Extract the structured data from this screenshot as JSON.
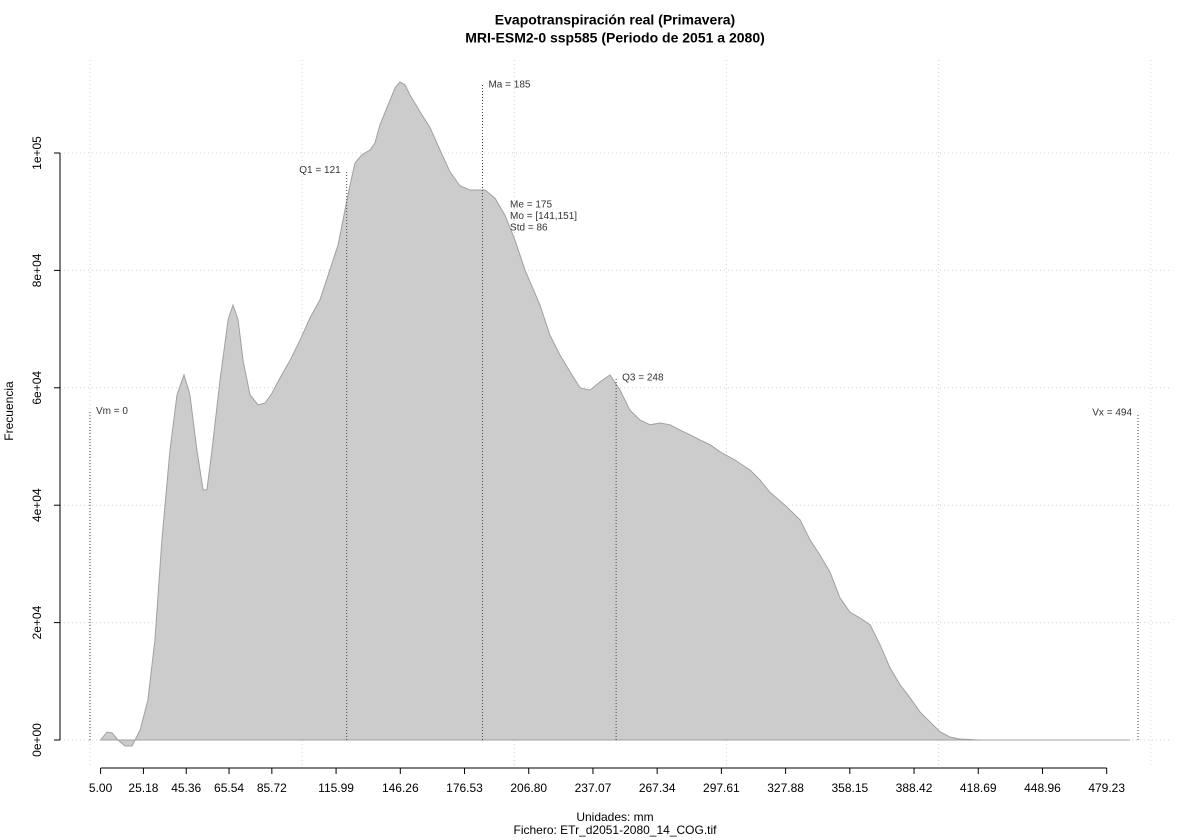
{
  "chart_data": {
    "type": "area",
    "title": "Evapotranspiración real (Primavera)",
    "subtitle": "MRI-ESM2-0 ssp585 (Periodo de 2051 a 2080)",
    "xlabel": "Unidades: mm",
    "caption": "Fichero: ETr_d2051-2080_14_COG.tif",
    "ylabel": "Frecuencia",
    "color": "#cccccc",
    "line_color": "#a0a0a0",
    "grid": true,
    "xgrid": [
      0,
      100,
      200,
      300,
      400,
      500
    ],
    "xlim": [
      -14.14,
      509.07
    ],
    "ylim": [
      -4770,
      115840
    ],
    "xticks": [
      {
        "value": 5,
        "label": "5.00"
      },
      25.18,
      45.36,
      65.54,
      85.72,
      115.99,
      146.26,
      176.53,
      {
        "value": 206.8,
        "label": "206.80"
      },
      237.07,
      267.34,
      297.61,
      327.88,
      358.15,
      388.42,
      418.69,
      448.96,
      479.23
    ],
    "yticks": [
      {
        "value": 0,
        "label": "0e+00"
      },
      {
        "value": 20000,
        "label": "2e+04"
      },
      {
        "value": 40000,
        "label": "4e+04"
      },
      {
        "value": 60000,
        "label": "6e+04"
      },
      {
        "value": 80000,
        "label": "8e+04"
      },
      {
        "value": 100000,
        "label": "1e+05"
      }
    ],
    "x": [
      5,
      8.0,
      10.4,
      13.2,
      16.5,
      19.8,
      23.6,
      27.3,
      30.6,
      33.9,
      37.7,
      41.0,
      44.3,
      47.1,
      50.4,
      53.3,
      55.1,
      57.5,
      61.3,
      65.1,
      67.4,
      69.8,
      72.1,
      75.4,
      79.2,
      82.5,
      85.8,
      89.6,
      94.3,
      99.0,
      103.7,
      108.4,
      113.1,
      116.9,
      120.2,
      122.6,
      124.9,
      128.2,
      132.0,
      134.3,
      136.7,
      140.5,
      143.8,
      146.1,
      148.5,
      150.8,
      155.6,
      160.3,
      165.0,
      169.7,
      174.4,
      179.1,
      186.2,
      190.9,
      195.6,
      200.3,
      205.0,
      212.1,
      216.8,
      221.5,
      226.3,
      231.0,
      235.7,
      240.4,
      245.1,
      249.8,
      254.5,
      259.3,
      264.0,
      268.7,
      273.4,
      278.1,
      282.8,
      287.6,
      292.3,
      297.0,
      304.0,
      311.1,
      315.8,
      320.5,
      327.6,
      334.7,
      339.4,
      344.1,
      348.8,
      353.5,
      358.2,
      362.9,
      367.7,
      372.4,
      377.1,
      381.8,
      386.5,
      391.2,
      395.9,
      400.7,
      405.4,
      410.1,
      419.5,
      428.9,
      490.2
    ],
    "values": [
      0,
      1360,
      1190,
      0,
      -1020,
      -1020,
      1700,
      6800,
      17000,
      34100,
      49400,
      58800,
      62200,
      58800,
      49400,
      42600,
      42600,
      49400,
      61300,
      71600,
      74100,
      71600,
      64700,
      58800,
      57100,
      57400,
      59100,
      61700,
      64700,
      68100,
      71900,
      75000,
      80100,
      84300,
      90300,
      94600,
      98300,
      99700,
      100500,
      101700,
      104800,
      108200,
      111100,
      112100,
      111600,
      109900,
      107000,
      104300,
      100500,
      96800,
      94400,
      93700,
      93700,
      92300,
      89400,
      85200,
      80100,
      74100,
      69000,
      65600,
      62700,
      60000,
      59600,
      61000,
      62200,
      59600,
      56200,
      54500,
      53700,
      54000,
      53700,
      52800,
      52000,
      51100,
      50300,
      49100,
      47700,
      46000,
      44300,
      42200,
      40000,
      37500,
      34100,
      31500,
      28600,
      24200,
      21800,
      20800,
      19600,
      16200,
      12300,
      9400,
      7200,
      4800,
      3100,
      1400,
      500,
      170,
      0,
      0,
      0
    ],
    "markers": [
      {
        "label": "Vm = 0",
        "x": 0,
        "y": 56000,
        "label_side": "right"
      },
      {
        "label": "Q1 = 121",
        "x": 121,
        "y": 97000,
        "label_side": "left"
      },
      {
        "label": "Ma = 185",
        "x": 185,
        "y": 111600,
        "label_side": "right"
      },
      {
        "label": "Q3 = 248",
        "x": 248,
        "y": 61700,
        "label_side": "right"
      },
      {
        "label": "Vx = 494",
        "x": 494,
        "y": 55700,
        "label_side": "left"
      }
    ],
    "stats": {
      "lines": [
        "Me = 175",
        "Mo = [141,151]",
        "Std = 86"
      ],
      "x": 198,
      "y": 91200
    }
  }
}
